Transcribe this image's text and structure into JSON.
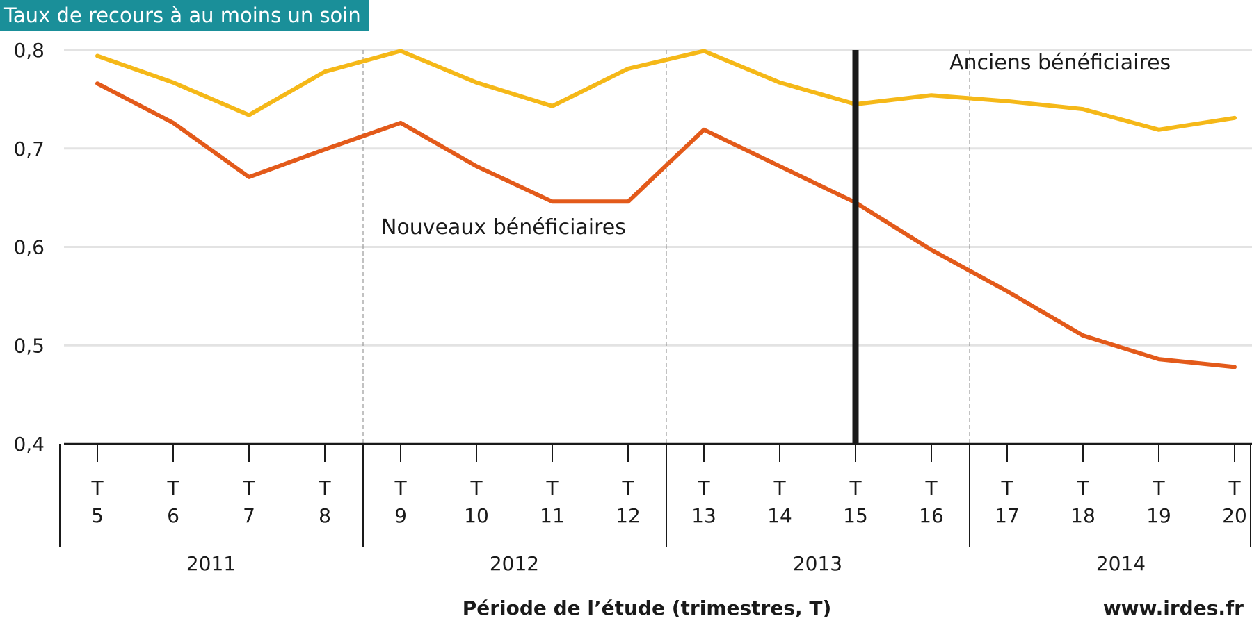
{
  "chart_data": {
    "type": "line",
    "title": "Taux de recours à au moins un soin",
    "xlabel": "Période de l’étude (trimestres, T)",
    "ylabel": "",
    "ylim": [
      0.4,
      0.8
    ],
    "yticks": [
      "0,8",
      "0,7",
      "0,6",
      "0,5",
      "0,4"
    ],
    "ytick_values": [
      0.8,
      0.7,
      0.6,
      0.5,
      0.4
    ],
    "grid": true,
    "x": [
      5,
      6,
      7,
      8,
      9,
      10,
      11,
      12,
      13,
      14,
      15,
      16,
      17,
      18,
      19,
      20
    ],
    "x_prefix": "T",
    "years": [
      {
        "label": "2011",
        "quarters": [
          5,
          8
        ]
      },
      {
        "label": "2012",
        "quarters": [
          9,
          12
        ]
      },
      {
        "label": "2013",
        "quarters": [
          13,
          16
        ]
      },
      {
        "label": "2014",
        "quarters": [
          17,
          20
        ]
      }
    ],
    "marker_line_x": 15,
    "series": [
      {
        "name": "Anciens bénéficiaires",
        "color": "#f5b818",
        "values": [
          0.794,
          0.767,
          0.734,
          0.778,
          0.799,
          0.767,
          0.743,
          0.781,
          0.799,
          0.767,
          0.745,
          0.754,
          0.748,
          0.74,
          0.719,
          0.731
        ]
      },
      {
        "name": "Nouveaux bénéficiaires",
        "color": "#e35a1a",
        "values": [
          0.766,
          0.726,
          0.671,
          0.699,
          0.726,
          0.682,
          0.646,
          0.646,
          0.719,
          0.682,
          0.645,
          0.597,
          0.555,
          0.51,
          0.486,
          0.478
        ]
      }
    ],
    "source": "www.irdes.fr"
  }
}
